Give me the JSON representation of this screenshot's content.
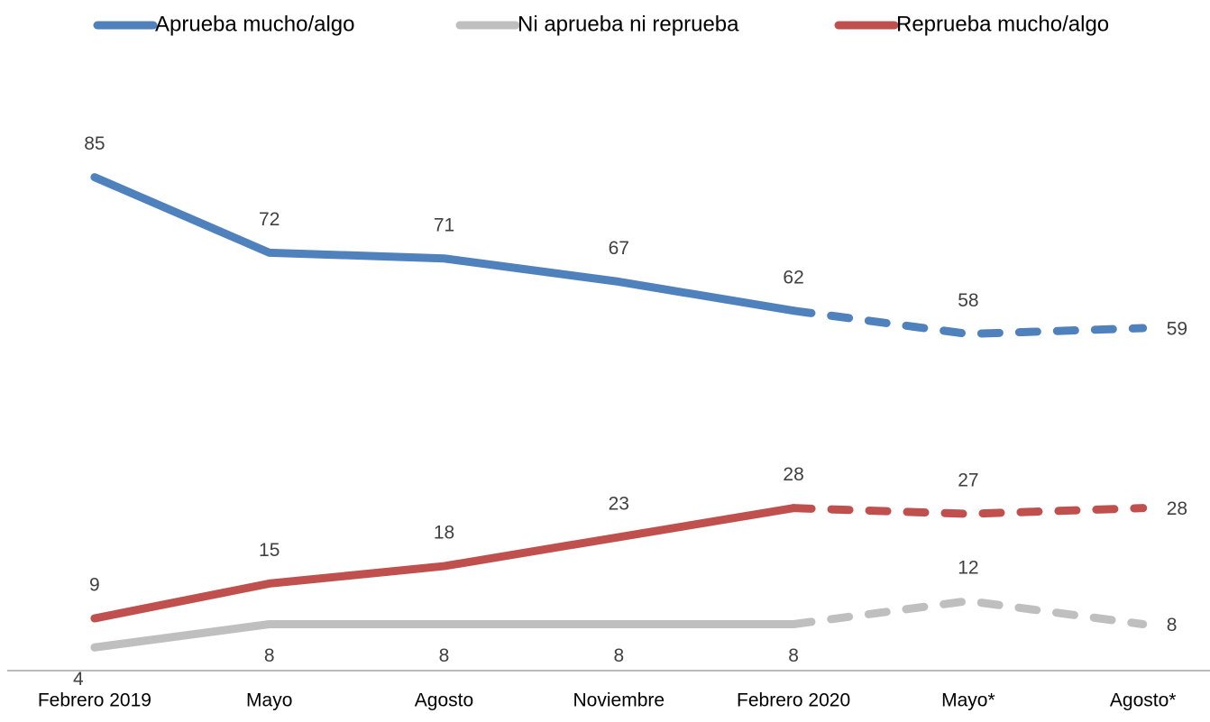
{
  "chart_data": {
    "type": "line",
    "categories": [
      "Febrero 2019",
      "Mayo",
      "Agosto",
      "Noviembre",
      "Febrero 2020",
      "Mayo*",
      "Agosto*"
    ],
    "series": [
      {
        "name": "Aprueba mucho/algo",
        "color": "#4f81bd",
        "values": [
          85,
          72,
          71,
          67,
          62,
          58,
          59
        ]
      },
      {
        "name": "Ni aprueba ni reprueba",
        "color": "#bfbfbf",
        "values": [
          4,
          8,
          8,
          8,
          8,
          12,
          8
        ]
      },
      {
        "name": "Reprueba mucho/algo",
        "color": "#c0504d",
        "values": [
          9,
          15,
          18,
          23,
          28,
          27,
          28
        ]
      }
    ],
    "dashed_from_index": 4,
    "ylim": [
      0,
      100
    ],
    "legend": "top"
  }
}
